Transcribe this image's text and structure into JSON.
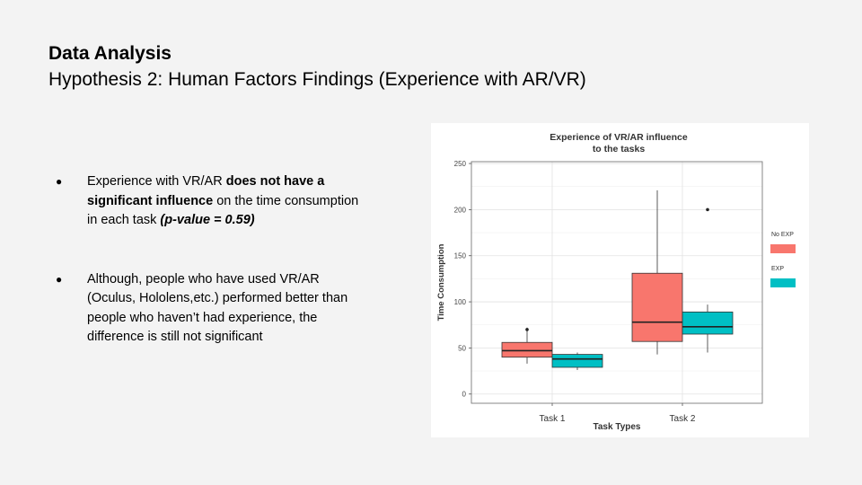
{
  "slide": {
    "title": "Data Analysis",
    "subtitle": "Hypothesis 2: Human Factors Findings (Experience with AR/VR)"
  },
  "bullets": [
    {
      "marker": "●",
      "parts": [
        {
          "text": "Experience with VR/AR ",
          "style": "normal"
        },
        {
          "text": "does not have a significant influence",
          "style": "bold"
        },
        {
          "text": " on the time consumption in each task ",
          "style": "normal"
        },
        {
          "text": "(p-value = 0.59)",
          "style": "bold-italic"
        }
      ]
    },
    {
      "marker": "●",
      "parts": [
        {
          "text": "Although, people who have used VR/AR (Oculus, Hololens,etc.) performed better than people who haven’t had experience, the difference is still not significant",
          "style": "normal"
        }
      ]
    }
  ],
  "chart_data": {
    "type": "boxplot",
    "title": [
      "Experience of VR/AR influence",
      "to the tasks"
    ],
    "xlabel": "Task Types",
    "ylabel": "Time Consumption",
    "categories": [
      "Task 1",
      "Task 2"
    ],
    "ylim": [
      -10,
      252
    ],
    "yticks": [
      0,
      50,
      100,
      150,
      200,
      250
    ],
    "grid": true,
    "legend_position": "right",
    "series": [
      {
        "name": "No EXP",
        "color": "#f8766d",
        "boxes": [
          {
            "category": "Task 1",
            "whisker_low": 33,
            "q1": 40,
            "median": 47,
            "q3": 56,
            "whisker_high": 72,
            "outliers": [
              70
            ]
          },
          {
            "category": "Task 2",
            "whisker_low": 43,
            "q1": 57,
            "median": 78,
            "q3": 131,
            "whisker_high": 221,
            "outliers": []
          }
        ]
      },
      {
        "name": "EXP",
        "color": "#00bfc4",
        "boxes": [
          {
            "category": "Task 1",
            "whisker_low": 26,
            "q1": 29,
            "median": 38,
            "q3": 43,
            "whisker_high": 45,
            "outliers": []
          },
          {
            "category": "Task 2",
            "whisker_low": 45,
            "q1": 65,
            "median": 73,
            "q3": 89,
            "whisker_high": 97,
            "outliers": [
              200
            ]
          }
        ]
      }
    ]
  }
}
